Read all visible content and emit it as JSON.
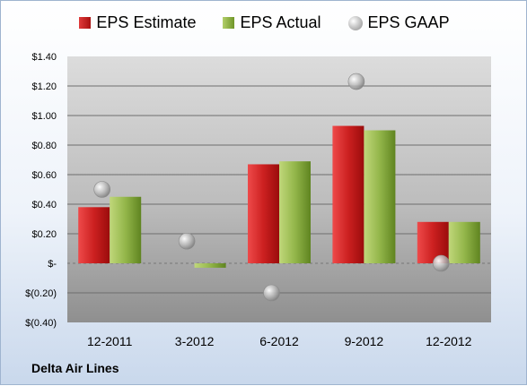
{
  "legend": {
    "estimate": "EPS Estimate",
    "actual": "EPS Actual",
    "gaap": "EPS GAAP"
  },
  "company": "Delta Air Lines",
  "colors": {
    "estimate": "#c81e1e",
    "actual": "#8db144",
    "gaap": "#b9b9b9"
  },
  "chart_data": {
    "type": "bar",
    "categories": [
      "12-2011",
      "3-2012",
      "6-2012",
      "9-2012",
      "12-2012"
    ],
    "series": [
      {
        "name": "EPS Estimate",
        "values": [
          0.38,
          null,
          0.67,
          0.93,
          0.28
        ]
      },
      {
        "name": "EPS Actual",
        "values": [
          0.45,
          -0.03,
          0.69,
          0.9,
          0.28
        ]
      },
      {
        "name": "EPS GAAP",
        "values": [
          0.5,
          0.15,
          -0.2,
          1.23,
          0.0
        ]
      }
    ],
    "ylim": [
      -0.4,
      1.4
    ],
    "yticks": [
      1.4,
      1.2,
      1.0,
      0.8,
      0.6,
      0.4,
      0.2,
      0,
      -0.2,
      -0.4
    ],
    "ytick_labels": [
      "$1.40",
      "$1.20",
      "$1.00",
      "$0.80",
      "$0.60",
      "$0.40",
      "$0.20",
      "$-",
      "$(0.20)",
      "$(0.40)"
    ],
    "grid": true,
    "legend_position": "top"
  }
}
